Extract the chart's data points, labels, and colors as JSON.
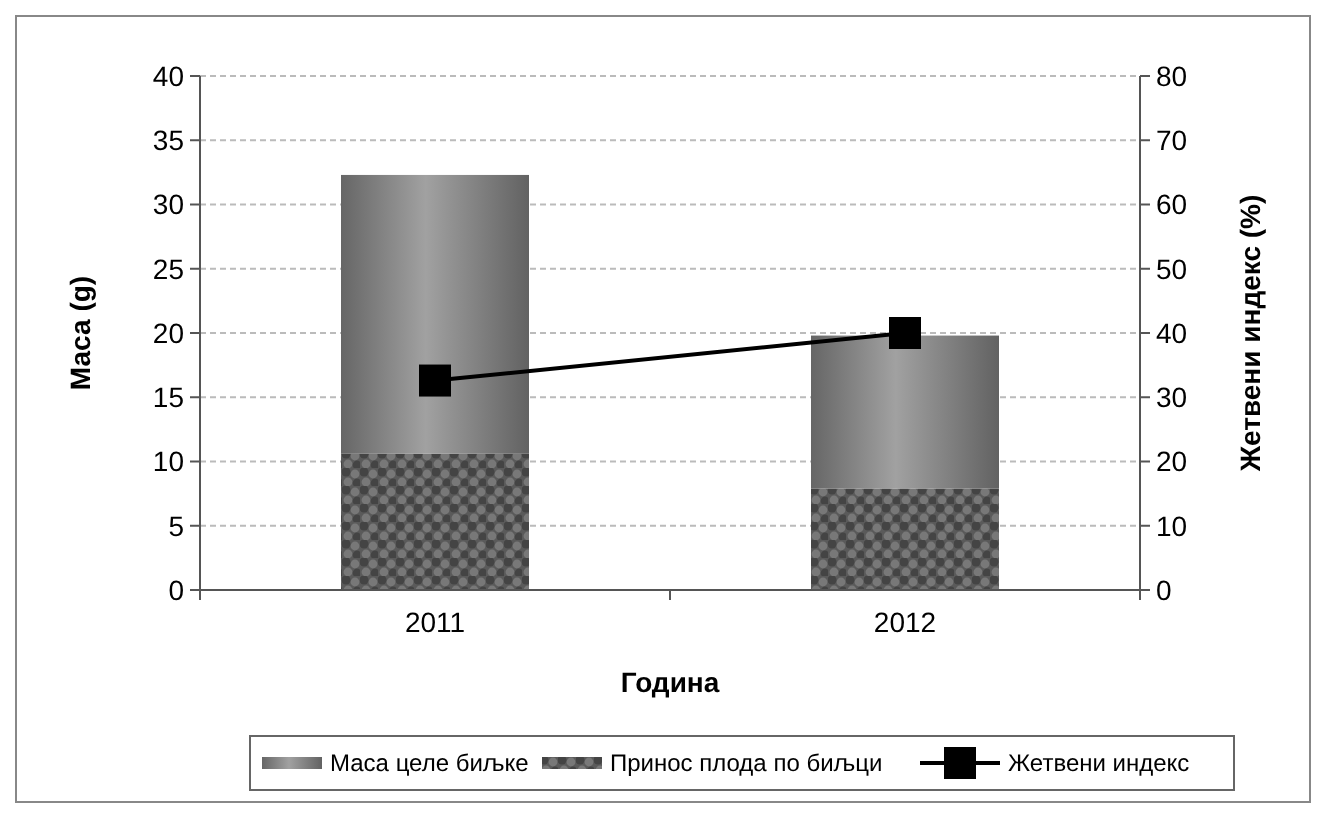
{
  "chart_data": {
    "type": "bar",
    "stacked": true,
    "xlabel": "Година",
    "ylabel": "Маса (g)",
    "y2label": "Жетвени индекс (%)",
    "categories": [
      "2011",
      "2012"
    ],
    "series": [
      {
        "name": "Принос плода по биљци",
        "color": "#5a5a5a",
        "values": [
          10.6,
          7.9
        ]
      },
      {
        "name": "Маса целе биљке",
        "color": "#8c8c8c",
        "values": [
          21.7,
          11.9
        ]
      },
      {
        "name": "Жетвени индекс",
        "type": "line",
        "axis": "y2",
        "color": "#000000",
        "values": [
          32.6,
          40
        ],
        "marker": "square",
        "line_style": "solid"
      }
    ],
    "ylim": [
      0,
      40
    ],
    "yticks": [
      0,
      5,
      10,
      15,
      20,
      25,
      30,
      35,
      40
    ],
    "y2lim": [
      0,
      80
    ],
    "y2ticks": [
      0,
      10,
      20,
      30,
      40,
      50,
      60,
      70,
      80
    ],
    "grid": "y",
    "legend": "bottom"
  }
}
